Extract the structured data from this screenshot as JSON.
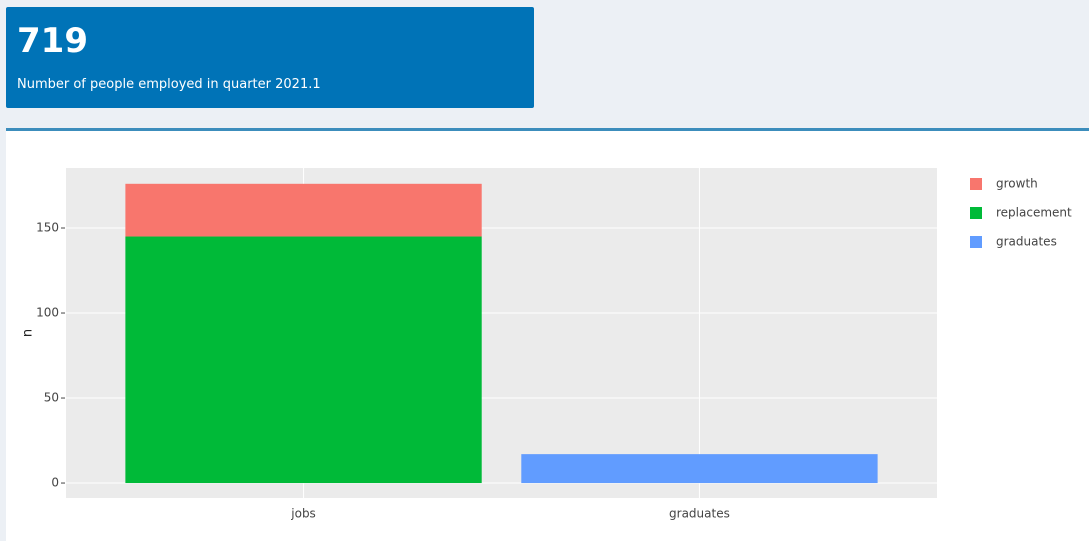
{
  "value_box": {
    "value": "719",
    "subtitle": "Number of people employed in quarter 2021.1"
  },
  "chart_data": {
    "type": "stacked_bar",
    "categories": [
      "jobs",
      "graduates"
    ],
    "series": [
      {
        "name": "growth",
        "color": "#f8766d",
        "values": [
          31,
          null
        ]
      },
      {
        "name": "replacement",
        "color": "#00ba38",
        "values": [
          145,
          null
        ]
      },
      {
        "name": "graduates",
        "color": "#619cff",
        "values": [
          null,
          17
        ]
      }
    ],
    "y_label": "n",
    "ylim": [
      -8.8,
      185.3
    ],
    "yticks": [
      0,
      50,
      100,
      150
    ],
    "grid": true,
    "legend": "right"
  }
}
